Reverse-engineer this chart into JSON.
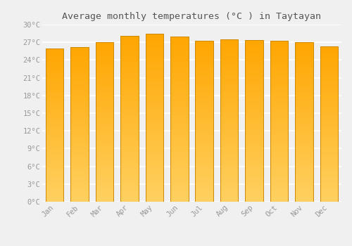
{
  "title": "Average monthly temperatures (°C ) in Taytayan",
  "months": [
    "Jan",
    "Feb",
    "Mar",
    "Apr",
    "May",
    "Jun",
    "Jul",
    "Aug",
    "Sep",
    "Oct",
    "Nov",
    "Dec"
  ],
  "temperatures": [
    26.0,
    26.2,
    27.0,
    28.1,
    28.5,
    28.0,
    27.3,
    27.5,
    27.4,
    27.3,
    27.0,
    26.3
  ],
  "bar_color_top": "#FFA500",
  "bar_color_mid": "#FFB733",
  "bar_color_bottom": "#FFD060",
  "bar_edge_color": "#CC8800",
  "ylim": [
    0,
    30
  ],
  "yticks": [
    0,
    3,
    6,
    9,
    12,
    15,
    18,
    21,
    24,
    27,
    30
  ],
  "ytick_labels": [
    "0°C",
    "3°C",
    "6°C",
    "9°C",
    "12°C",
    "15°C",
    "18°C",
    "21°C",
    "24°C",
    "27°C",
    "30°C"
  ],
  "background_color": "#f0f0f0",
  "grid_color": "#ffffff",
  "title_fontsize": 9.5,
  "tick_fontsize": 7.5,
  "bar_width": 0.72
}
